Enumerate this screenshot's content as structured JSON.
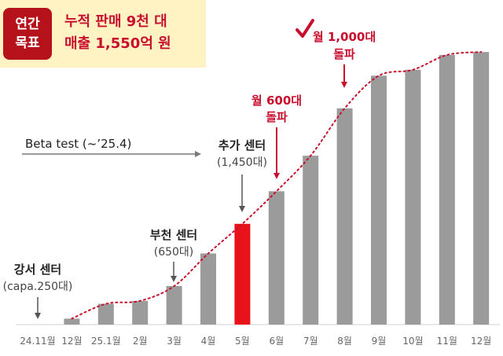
{
  "goal": {
    "tag_line1": "연간",
    "tag_line2": "목표",
    "line1": "누적 판매 9천 대",
    "line2": "매출 1,550억 원"
  },
  "annotations": {
    "beta_test": "Beta test (~’25.4)",
    "gangseo_title": "강서 센터",
    "gangseo_sub": "(capa.250대)",
    "bucheon_title": "부천 센터",
    "bucheon_sub": "(650대)",
    "extra_title": "추가 센터",
    "extra_sub": "(1,450대)",
    "m600_line1": "월 600대",
    "m600_line2": "돌파",
    "m1000_line1": "월 1,000대",
    "m1000_line2": "돌파",
    "check_icon": "checkmark-icon"
  },
  "colors": {
    "bar": "#9b9b9b",
    "highlight": "#e8121b",
    "trend": "#c8102e",
    "red_text": "#c8102e",
    "arrow_gray": "#7a7a7a",
    "goal_bg": "#fff3c4"
  },
  "chart_data": {
    "type": "bar",
    "categories": [
      "24.11월",
      "12월",
      "25.1월",
      "2월",
      "3월",
      "4월",
      "5월",
      "6월",
      "7월",
      "8월",
      "9월",
      "10월",
      "11월",
      "12월"
    ],
    "values": [
      0,
      2,
      7,
      8,
      13,
      24,
      34,
      45,
      57,
      73,
      84,
      86,
      91,
      92
    ],
    "highlight_category": "5월",
    "trend_line": "dotted",
    "ylim": [
      0,
      100
    ],
    "grid": false,
    "y_axis_visible": false
  }
}
